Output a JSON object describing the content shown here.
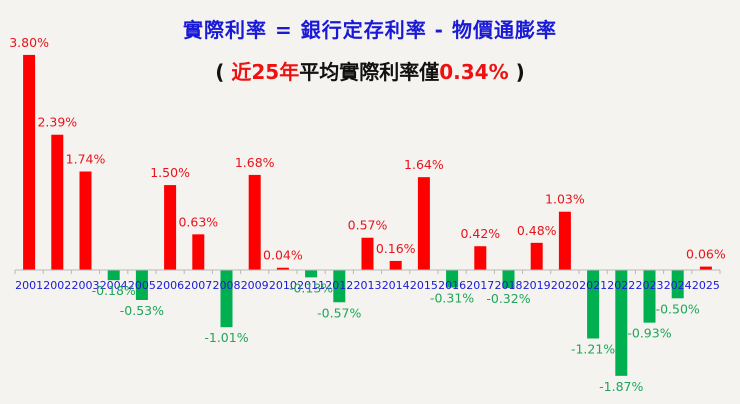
{
  "header": {
    "title_line1": "實際利率 =  銀行定存利率 - 物價通膨率",
    "title_line2_prefix": "( ",
    "title_line2_red1": "近25年",
    "title_line2_mid": "平均實際利率僅",
    "title_line2_red2": "0.34%",
    "title_line2_suffix": " )"
  },
  "colors": {
    "positive": "#ff0000",
    "negative": "#00b050",
    "positive_label": "#e8141c",
    "negative_label": "#1fa65a",
    "axis_label": "#1a1ad6",
    "background": "#f5f3ef"
  },
  "chart_data": {
    "type": "bar",
    "title": "實際利率 = 銀行定存利率 - 物價通膨率",
    "subtitle": "( 近25年平均實際利率僅0.34% )",
    "xlabel": "",
    "ylabel": "",
    "categories": [
      "2001",
      "2002",
      "2003",
      "2004",
      "2005",
      "2006",
      "2007",
      "2008",
      "2009",
      "2010",
      "2011",
      "2012",
      "2013",
      "2014",
      "2015",
      "2016",
      "2017",
      "2018",
      "2019",
      "2020",
      "2021",
      "2022",
      "2023",
      "2024",
      "2025"
    ],
    "values": [
      3.8,
      2.39,
      1.74,
      -0.18,
      -0.53,
      1.5,
      0.63,
      -1.01,
      1.68,
      0.04,
      -0.13,
      -0.57,
      0.57,
      0.16,
      1.64,
      -0.31,
      0.42,
      -0.32,
      0.48,
      1.03,
      -1.21,
      -1.87,
      -0.93,
      -0.5,
      0.06
    ],
    "labels": [
      "3.80%",
      "2.39%",
      "1.74%",
      "-0.18%",
      "-0.53%",
      "1.50%",
      "0.63%",
      "-1.01%",
      "1.68%",
      "0.04%",
      "-0.13%",
      "-0.57%",
      "0.57%",
      "0.16%",
      "1.64%",
      "-0.31%",
      "0.42%",
      "-0.32%",
      "0.48%",
      "1.03%",
      "-1.21%",
      "-1.87%",
      "-0.93%",
      "-0.50%",
      "0.06%"
    ],
    "unit": "%",
    "grid": false,
    "legend": "none",
    "ylim": [
      -2.0,
      4.0
    ]
  }
}
